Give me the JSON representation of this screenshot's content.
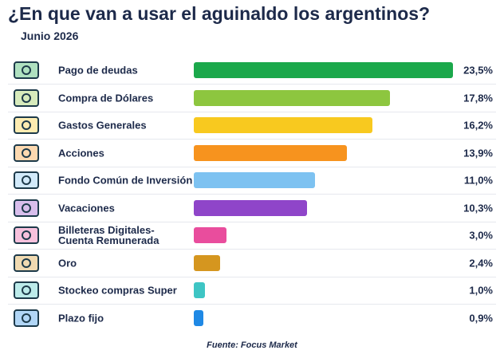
{
  "chart_data": {
    "type": "bar",
    "orientation": "horizontal",
    "title": "¿En que van a usar el aguinaldo los argentinos?",
    "subtitle": "Junio 2026",
    "source": "Fuente: Focus Market",
    "categories": [
      "Pago de deudas",
      "Compra de Dólares",
      "Gastos Generales",
      "Acciones",
      "Fondo Común de Inversión",
      "Vacaciones",
      "Billeteras Digitales-\nCuenta Remunerada",
      "Oro",
      "Stockeo compras Super",
      "Plazo fijo"
    ],
    "values": [
      23.5,
      17.8,
      16.2,
      13.9,
      11.0,
      10.3,
      3.0,
      2.4,
      1.0,
      0.9
    ],
    "value_labels": [
      "23,5%",
      "17,8%",
      "16,2%",
      "13,9%",
      "11,0%",
      "10,3%",
      "3,0%",
      "2,4%",
      "1,0%",
      "0,9%"
    ],
    "colors": [
      "#1ba84b",
      "#8dc63f",
      "#f8c91f",
      "#f7931e",
      "#7dc2f1",
      "#8f45c9",
      "#e94d9d",
      "#d5961f",
      "#3ec5c4",
      "#1f89e5"
    ]
  }
}
